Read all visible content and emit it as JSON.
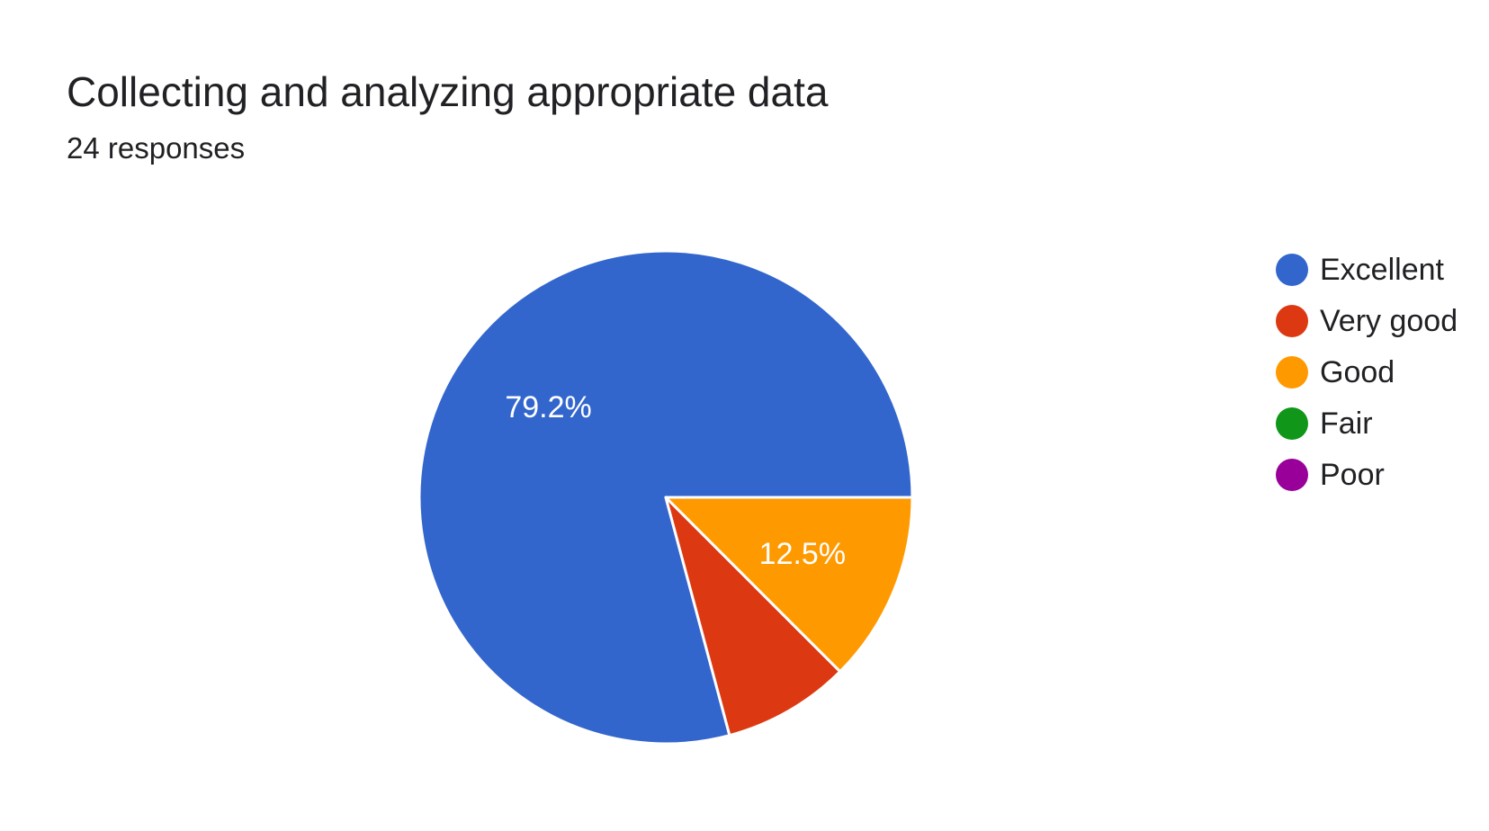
{
  "header": {
    "title": "Collecting and analyzing appropriate data",
    "subtitle": "24 responses"
  },
  "chart_data": {
    "type": "pie",
    "title": "Collecting and analyzing appropriate data",
    "subtitle": "24 responses",
    "legend_position": "right",
    "categories": [
      "Excellent",
      "Very good",
      "Good",
      "Fair",
      "Poor"
    ],
    "values": [
      19,
      2,
      3,
      0,
      0
    ],
    "percent_labels": [
      "79.2%",
      "",
      "12.5%",
      "",
      ""
    ],
    "colors": [
      "#3366CC",
      "#DC3912",
      "#FF9900",
      "#109618",
      "#990099"
    ]
  }
}
